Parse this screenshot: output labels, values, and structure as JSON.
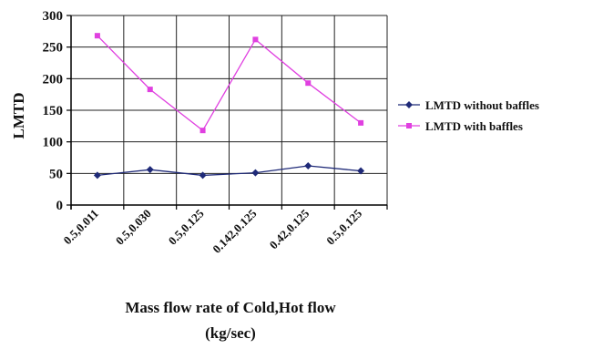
{
  "chart_data": {
    "type": "line",
    "title": "",
    "xlabel_lines": [
      "Mass flow rate of Cold,Hot flow",
      "(kg/sec)"
    ],
    "ylabel": "LMTD",
    "ylim": [
      0,
      300
    ],
    "yticks": [
      0,
      50,
      100,
      150,
      200,
      250,
      300
    ],
    "categories": [
      "0.5,0.011",
      "0.5,0.030",
      "0.5,0.125",
      "0.142,0.125",
      "0.42,0.125",
      "0.5,0.125"
    ],
    "grid": true,
    "legend_position": "right",
    "series": [
      {
        "name": "LMTD without baffles",
        "values": [
          47,
          56,
          47,
          51,
          62,
          54
        ],
        "color": "#1f2a78",
        "marker": "diamond"
      },
      {
        "name": "LMTD with baffles",
        "values": [
          268,
          183,
          118,
          262,
          193,
          130
        ],
        "color": "#e040e0",
        "marker": "square"
      }
    ]
  }
}
